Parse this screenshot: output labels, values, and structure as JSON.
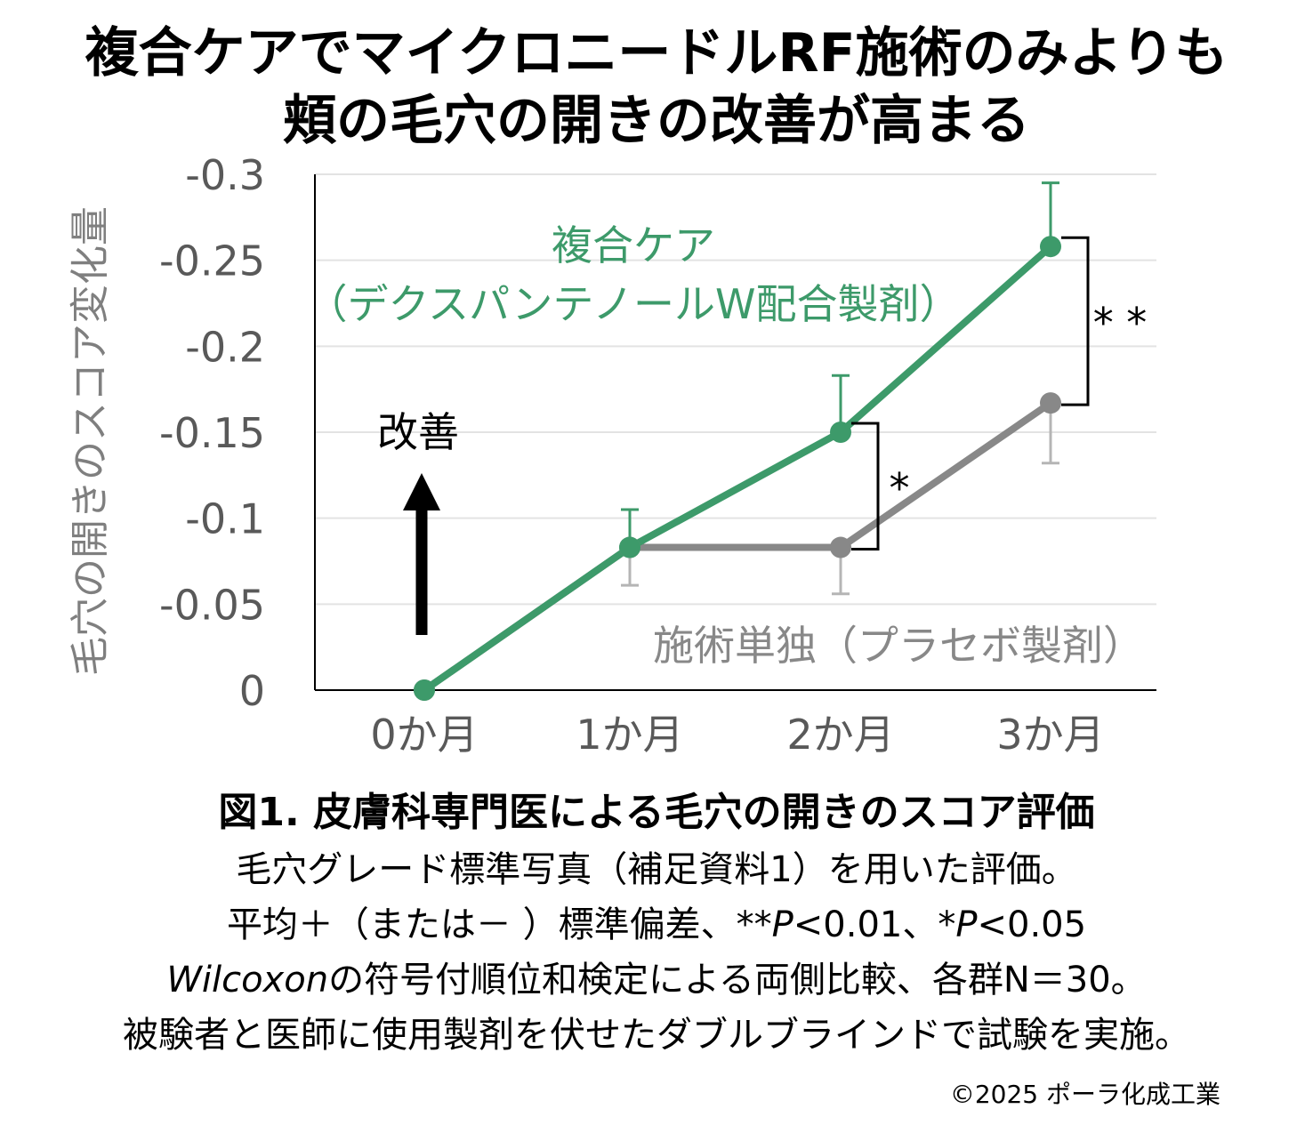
{
  "title_line1": "複合ケアでマイクロニードルRF施術のみよりも",
  "title_line2": "頬の毛穴の開きの改善が高まる",
  "chart_data": {
    "type": "line",
    "categories": [
      "0か月",
      "1か月",
      "2か月",
      "3か月"
    ],
    "ylabel": "毛穴の開きのスコア変化量",
    "yticks": [
      "-0.3",
      "-0.25",
      "-0.2",
      "-0.15",
      "-0.1",
      "-0.05",
      "0"
    ],
    "ylim": [
      0,
      -0.3
    ],
    "y_inverted": true,
    "grid": true,
    "series": [
      {
        "name_line1": "複合ケア",
        "name_line2": "（デクスパンテノールW配合製剤）",
        "color": "#3d9a6a",
        "values": [
          0,
          -0.083,
          -0.15,
          -0.258
        ],
        "sd": [
          null,
          0.022,
          0.033,
          0.037
        ],
        "error_direction": "up"
      },
      {
        "name_line1": "施術単独（プラセボ製剤）",
        "color": "#888888",
        "values": [
          0,
          -0.083,
          -0.083,
          -0.167
        ],
        "sd": [
          null,
          0.022,
          0.027,
          0.035
        ],
        "error_direction": "down"
      }
    ],
    "significance": [
      {
        "at": "2か月",
        "label": "*"
      },
      {
        "at": "3か月",
        "label": "* *"
      }
    ],
    "arrow_label": "改善"
  },
  "caption": {
    "title": "図1. 皮膚科専門医による毛穴の開きのスコア評価",
    "line1": "毛穴グレード標準写真（補足資料1）を用いた評価。",
    "line2_a": "平均＋（または－ ）標準偏差、**",
    "line2_p1": "P",
    "line2_b": "<0.01、*",
    "line2_p2": "P",
    "line2_c": "<0.05",
    "line3_ital": "Wilcoxon",
    "line3_rest": "の符号付順位和検定による両側比較、各群N＝30。",
    "line4": "被験者と医師に使用製剤を伏せたダブルブラインドで試験を実施。"
  },
  "credit": "©2025 ポーラ化成工業"
}
